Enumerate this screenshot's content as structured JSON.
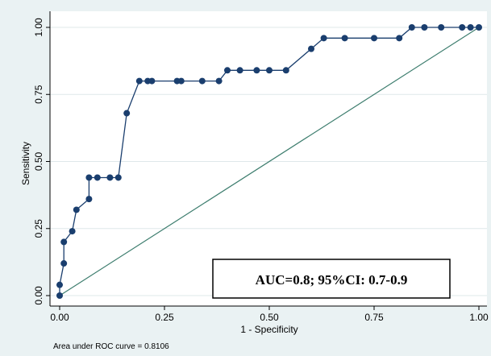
{
  "chart_data": {
    "type": "line",
    "xlabel": "1 - Specificity",
    "ylabel": "Sensitivity",
    "xlim": [
      0,
      1
    ],
    "ylim": [
      0,
      1
    ],
    "xticks": [
      "0.00",
      "0.25",
      "0.50",
      "0.75",
      "1.00"
    ],
    "yticks": [
      "0.00",
      "0.25",
      "0.50",
      "0.75",
      "1.00"
    ],
    "grid": "horizontal",
    "series": [
      {
        "type": "line-markers",
        "color": "#1a3e6e",
        "points": [
          [
            0.0,
            0.0
          ],
          [
            0.0,
            0.04
          ],
          [
            0.01,
            0.12
          ],
          [
            0.01,
            0.2
          ],
          [
            0.03,
            0.24
          ],
          [
            0.04,
            0.32
          ],
          [
            0.07,
            0.36
          ],
          [
            0.07,
            0.44
          ],
          [
            0.09,
            0.44
          ],
          [
            0.12,
            0.44
          ],
          [
            0.14,
            0.44
          ],
          [
            0.16,
            0.68
          ],
          [
            0.19,
            0.8
          ],
          [
            0.21,
            0.8
          ],
          [
            0.22,
            0.8
          ],
          [
            0.28,
            0.8
          ],
          [
            0.29,
            0.8
          ],
          [
            0.34,
            0.8
          ],
          [
            0.38,
            0.8
          ],
          [
            0.4,
            0.84
          ],
          [
            0.43,
            0.84
          ],
          [
            0.47,
            0.84
          ],
          [
            0.5,
            0.84
          ],
          [
            0.54,
            0.84
          ],
          [
            0.6,
            0.92
          ],
          [
            0.63,
            0.96
          ],
          [
            0.68,
            0.96
          ],
          [
            0.75,
            0.96
          ],
          [
            0.81,
            0.96
          ],
          [
            0.84,
            1.0
          ],
          [
            0.87,
            1.0
          ],
          [
            0.91,
            1.0
          ],
          [
            0.96,
            1.0
          ],
          [
            0.98,
            1.0
          ],
          [
            1.0,
            1.0
          ]
        ]
      },
      {
        "type": "reference-line",
        "color": "#3d7d6e",
        "points": [
          [
            0,
            0
          ],
          [
            1,
            1
          ]
        ]
      }
    ],
    "annotation": "AUC=0.8; 95%CI: 0.7-0.9",
    "note": "Area under ROC curve = 0.8106"
  }
}
